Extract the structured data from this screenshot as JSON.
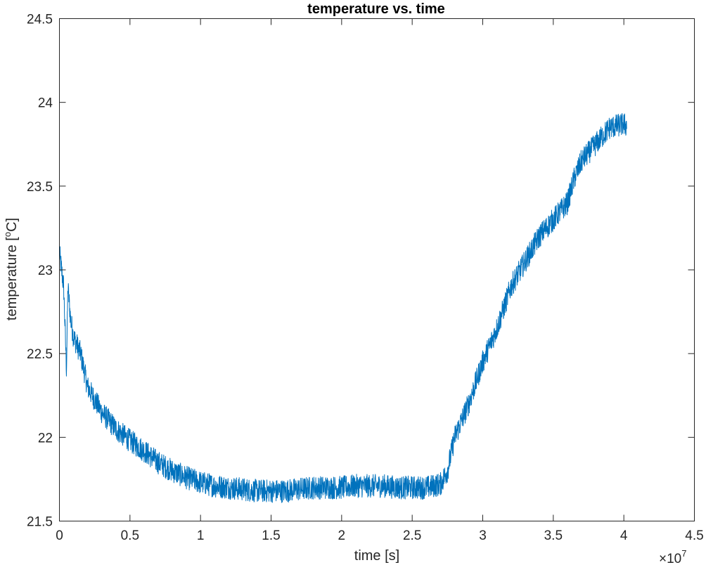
{
  "chart_data": {
    "type": "line",
    "title": "temperature vs. time",
    "xlabel": "time [s]",
    "ylabel_main": "temperature [",
    "ylabel_sup": "o",
    "ylabel_end": "C]",
    "x_exponent_base": "×10",
    "x_exponent_power": "7",
    "x_multiplier": 10000000,
    "xlim": [
      0,
      4.5
    ],
    "ylim": [
      21.5,
      24.5
    ],
    "x_ticks": [
      0,
      0.5,
      1,
      1.5,
      2,
      2.5,
      3,
      3.5,
      4,
      4.5
    ],
    "x_tick_labels": [
      "0",
      "0.5",
      "1",
      "1.5",
      "2",
      "2.5",
      "3",
      "3.5",
      "4",
      "4.5"
    ],
    "y_ticks": [
      21.5,
      22,
      22.5,
      23,
      23.5,
      24,
      24.5
    ],
    "y_tick_labels": [
      "21.5",
      "22",
      "22.5",
      "23",
      "23.5",
      "24",
      "24.5"
    ],
    "grid": false,
    "line_color": "#0072BD",
    "noise_amplitude": 0.07,
    "series": [
      {
        "x": [
          0.0,
          0.03,
          0.05,
          0.06,
          0.08,
          0.1,
          0.15,
          0.2,
          0.3,
          0.4,
          0.5,
          0.6,
          0.7,
          0.8,
          0.9,
          1.0,
          1.1,
          1.2,
          1.3,
          1.4,
          1.5,
          1.6,
          1.7,
          1.8,
          1.9,
          2.0,
          2.1,
          2.2,
          2.3,
          2.4,
          2.5,
          2.6,
          2.7,
          2.75,
          2.8,
          2.9,
          3.0,
          3.1,
          3.2,
          3.3,
          3.4,
          3.5,
          3.6,
          3.65,
          3.7,
          3.8,
          3.9,
          4.0,
          4.02
        ],
        "values": [
          23.1,
          22.9,
          22.4,
          22.9,
          22.7,
          22.6,
          22.5,
          22.3,
          22.15,
          22.05,
          21.98,
          21.92,
          21.85,
          21.8,
          21.76,
          21.73,
          21.71,
          21.7,
          21.69,
          21.68,
          21.68,
          21.68,
          21.69,
          21.7,
          21.7,
          21.7,
          21.71,
          21.71,
          21.71,
          21.7,
          21.7,
          21.7,
          21.72,
          21.8,
          22.0,
          22.2,
          22.45,
          22.65,
          22.9,
          23.05,
          23.2,
          23.3,
          23.4,
          23.55,
          23.65,
          23.75,
          23.85,
          23.87,
          23.86
        ]
      }
    ]
  }
}
